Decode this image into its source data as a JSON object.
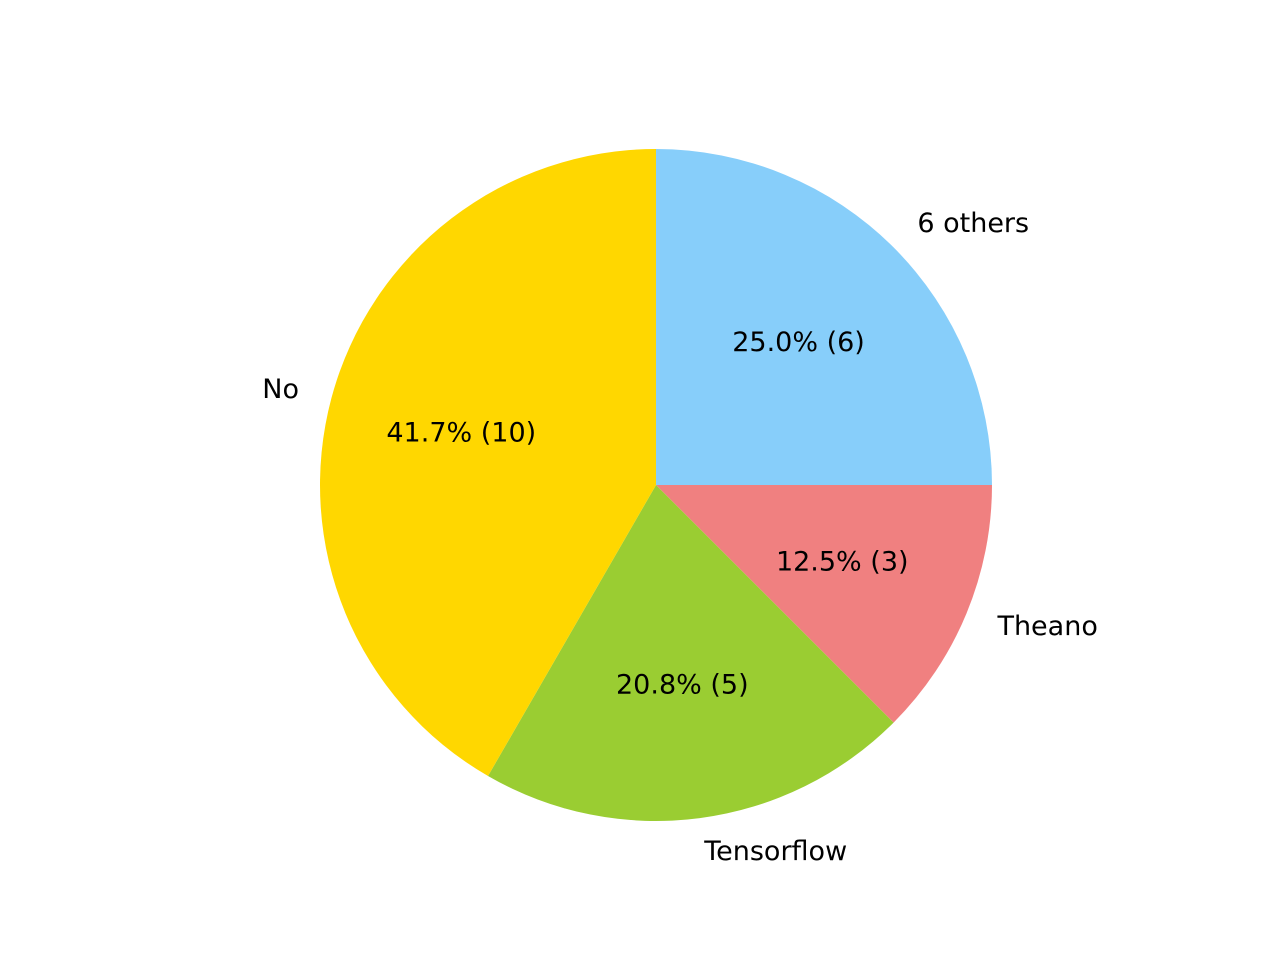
{
  "chart_data": {
    "type": "pie",
    "slices": [
      {
        "label": "6 others",
        "value": 6,
        "percent_text": "25.0%  (6)",
        "color": "#87CEFA"
      },
      {
        "label": "Theano",
        "value": 3,
        "percent_text": "12.5%  (3)",
        "color": "#F08080"
      },
      {
        "label": "Tensorflow",
        "value": 5,
        "percent_text": "20.8%  (5)",
        "color": "#9ACD32"
      },
      {
        "label": "No",
        "value": 10,
        "percent_text": "41.7%  (10)",
        "color": "#FFD700"
      }
    ],
    "start_angle": "12 o'clock",
    "direction": "clockwise"
  }
}
